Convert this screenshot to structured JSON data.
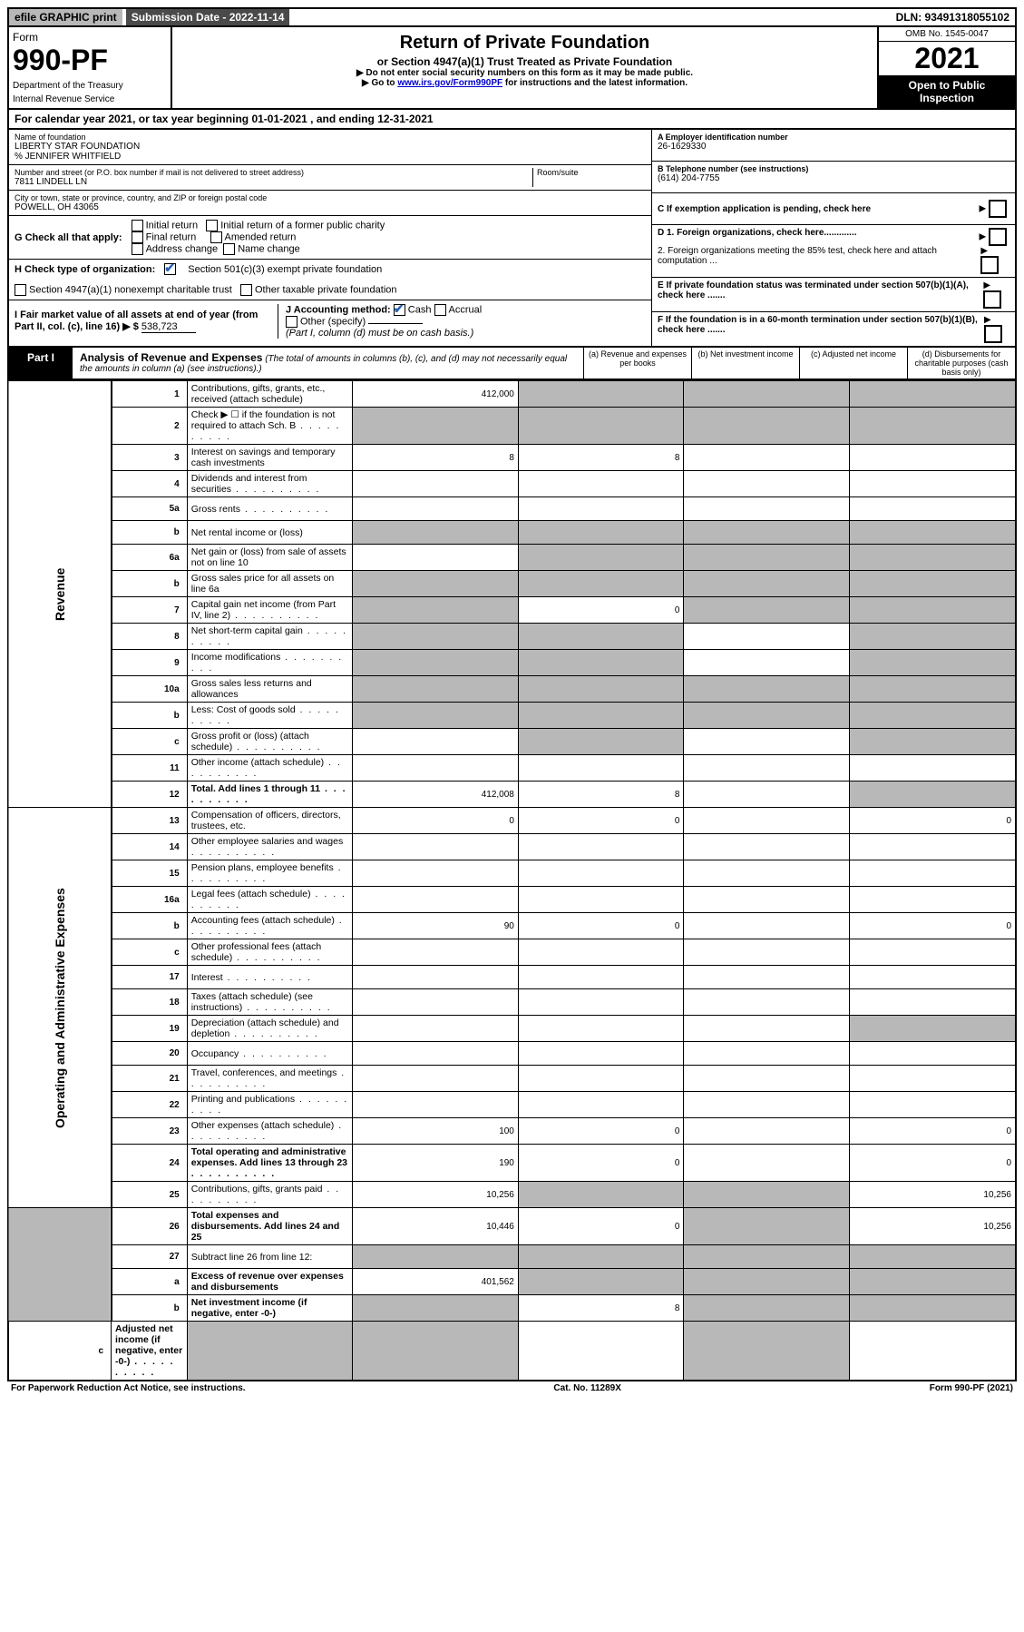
{
  "topbar": {
    "efile": "efile GRAPHIC print",
    "submission": "Submission Date - 2022-11-14",
    "dln": "DLN: 93491318055102"
  },
  "header": {
    "form_word": "Form",
    "form_no": "990-PF",
    "dept": "Department of the Treasury",
    "irs": "Internal Revenue Service",
    "title": "Return of Private Foundation",
    "subtitle": "or Section 4947(a)(1) Trust Treated as Private Foundation",
    "note1": "▶ Do not enter social security numbers on this form as it may be made public.",
    "note2_pre": "▶ Go to ",
    "note2_link": "www.irs.gov/Form990PF",
    "note2_post": " for instructions and the latest information.",
    "omb": "OMB No. 1545-0047",
    "year": "2021",
    "open": "Open to Public Inspection"
  },
  "cal_year": {
    "text_pre": "For calendar year 2021, or tax year beginning ",
    "begin": "01-01-2021",
    "mid": " , and ending ",
    "end": "12-31-2021"
  },
  "info": {
    "name_lbl": "Name of foundation",
    "name1": "LIBERTY STAR FOUNDATION",
    "name2": "% JENNIFER WHITFIELD",
    "addr_lbl": "Number and street (or P.O. box number if mail is not delivered to street address)",
    "addr": "7811 LINDELL LN",
    "room_lbl": "Room/suite",
    "city_lbl": "City or town, state or province, country, and ZIP or foreign postal code",
    "city": "POWELL, OH  43065",
    "ein_lbl": "A Employer identification number",
    "ein": "26-1629330",
    "tel_lbl": "B Telephone number (see instructions)",
    "tel": "(614) 204-7755",
    "c": "C If exemption application is pending, check here",
    "d1": "D 1. Foreign organizations, check here.............",
    "d2": "2. Foreign organizations meeting the 85% test, check here and attach computation ...",
    "e": "E  If private foundation status was terminated under section 507(b)(1)(A), check here .......",
    "f": "F  If the foundation is in a 60-month termination under section 507(b)(1)(B), check here .......",
    "g": "G Check all that apply:",
    "g_opts": [
      "Initial return",
      "Initial return of a former public charity",
      "Final return",
      "Amended return",
      "Address change",
      "Name change"
    ],
    "h": "H Check type of organization:",
    "h1": "Section 501(c)(3) exempt private foundation",
    "h2": "Section 4947(a)(1) nonexempt charitable trust",
    "h3": "Other taxable private foundation",
    "i_lbl": "I Fair market value of all assets at end of year (from Part II, col. (c), line 16) ▶ $",
    "i_val": "538,723",
    "j": "J Accounting method:",
    "j1": "Cash",
    "j2": "Accrual",
    "j3": "Other (specify)",
    "j_note": "(Part I, column (d) must be on cash basis.)"
  },
  "part1": {
    "tag": "Part I",
    "title": "Analysis of Revenue and Expenses",
    "note": "(The total of amounts in columns (b), (c), and (d) may not necessarily equal the amounts in column (a) (see instructions).)",
    "col_a": "(a) Revenue and expenses per books",
    "col_b": "(b) Net investment income",
    "col_c": "(c) Adjusted net income",
    "col_d": "(d) Disbursements for charitable purposes (cash basis only)"
  },
  "vlabels": {
    "rev": "Revenue",
    "exp": "Operating and Administrative Expenses"
  },
  "rows": [
    {
      "n": "1",
      "d": "Contributions, gifts, grants, etc., received (attach schedule)",
      "a": "412,000",
      "sb": true,
      "sc": true,
      "sd": true
    },
    {
      "n": "2",
      "d": "Check ▶ ☐ if the foundation is not required to attach Sch. B",
      "dots": true,
      "sa": true,
      "sb": true,
      "sc": true,
      "sd": true
    },
    {
      "n": "3",
      "d": "Interest on savings and temporary cash investments",
      "a": "8",
      "b": "8"
    },
    {
      "n": "4",
      "d": "Dividends and interest from securities",
      "dots": true
    },
    {
      "n": "5a",
      "d": "Gross rents",
      "dots": true
    },
    {
      "n": "b",
      "d": "Net rental income or (loss)",
      "sa": true,
      "sb": true,
      "sc": true,
      "sd": true
    },
    {
      "n": "6a",
      "d": "Net gain or (loss) from sale of assets not on line 10",
      "sb": true,
      "sc": true,
      "sd": true
    },
    {
      "n": "b",
      "d": "Gross sales price for all assets on line 6a",
      "sa": true,
      "sb": true,
      "sc": true,
      "sd": true
    },
    {
      "n": "7",
      "d": "Capital gain net income (from Part IV, line 2)",
      "dots": true,
      "sa": true,
      "b": "0",
      "sc": true,
      "sd": true
    },
    {
      "n": "8",
      "d": "Net short-term capital gain",
      "dots": true,
      "sa": true,
      "sb": true,
      "sd": true
    },
    {
      "n": "9",
      "d": "Income modifications",
      "dots": true,
      "sa": true,
      "sb": true,
      "sd": true
    },
    {
      "n": "10a",
      "d": "Gross sales less returns and allowances",
      "sa": true,
      "sb": true,
      "sc": true,
      "sd": true
    },
    {
      "n": "b",
      "d": "Less: Cost of goods sold",
      "dots": true,
      "sa": true,
      "sb": true,
      "sc": true,
      "sd": true
    },
    {
      "n": "c",
      "d": "Gross profit or (loss) (attach schedule)",
      "dots": true,
      "sb": true,
      "sd": true
    },
    {
      "n": "11",
      "d": "Other income (attach schedule)",
      "dots": true
    },
    {
      "n": "12",
      "d": "Total. Add lines 1 through 11",
      "dots": true,
      "bold": true,
      "a": "412,008",
      "b": "8",
      "sd": true
    },
    {
      "n": "13",
      "d": "Compensation of officers, directors, trustees, etc.",
      "a": "0",
      "b": "0",
      "d4": "0"
    },
    {
      "n": "14",
      "d": "Other employee salaries and wages",
      "dots": true
    },
    {
      "n": "15",
      "d": "Pension plans, employee benefits",
      "dots": true
    },
    {
      "n": "16a",
      "d": "Legal fees (attach schedule)",
      "dots": true
    },
    {
      "n": "b",
      "d": "Accounting fees (attach schedule)",
      "dots": true,
      "a": "90",
      "b": "0",
      "d4": "0"
    },
    {
      "n": "c",
      "d": "Other professional fees (attach schedule)",
      "dots": true
    },
    {
      "n": "17",
      "d": "Interest",
      "dots": true
    },
    {
      "n": "18",
      "d": "Taxes (attach schedule) (see instructions)",
      "dots": true
    },
    {
      "n": "19",
      "d": "Depreciation (attach schedule) and depletion",
      "dots": true,
      "sd": true
    },
    {
      "n": "20",
      "d": "Occupancy",
      "dots": true
    },
    {
      "n": "21",
      "d": "Travel, conferences, and meetings",
      "dots": true
    },
    {
      "n": "22",
      "d": "Printing and publications",
      "dots": true
    },
    {
      "n": "23",
      "d": "Other expenses (attach schedule)",
      "dots": true,
      "a": "100",
      "b": "0",
      "d4": "0"
    },
    {
      "n": "24",
      "d": "Total operating and administrative expenses. Add lines 13 through 23",
      "dots": true,
      "bold": true,
      "a": "190",
      "b": "0",
      "d4": "0"
    },
    {
      "n": "25",
      "d": "Contributions, gifts, grants paid",
      "dots": true,
      "a": "10,256",
      "sb": true,
      "sc": true,
      "d4": "10,256"
    },
    {
      "n": "26",
      "d": "Total expenses and disbursements. Add lines 24 and 25",
      "bold": true,
      "a": "10,446",
      "b": "0",
      "sc": true,
      "d4": "10,256"
    },
    {
      "n": "27",
      "d": "Subtract line 26 from line 12:",
      "sa": true,
      "sb": true,
      "sc": true,
      "sd": true
    },
    {
      "n": "a",
      "d": "Excess of revenue over expenses and disbursements",
      "bold": true,
      "a": "401,562",
      "sb": true,
      "sc": true,
      "sd": true
    },
    {
      "n": "b",
      "d": "Net investment income (if negative, enter -0-)",
      "bold": true,
      "sa": true,
      "b": "8",
      "sc": true,
      "sd": true
    },
    {
      "n": "c",
      "d": "Adjusted net income (if negative, enter -0-)",
      "dots": true,
      "bold": true,
      "sa": true,
      "sb": true,
      "sd": true
    }
  ],
  "footer": {
    "left": "For Paperwork Reduction Act Notice, see instructions.",
    "mid": "Cat. No. 11289X",
    "right": "Form 990-PF (2021)"
  }
}
